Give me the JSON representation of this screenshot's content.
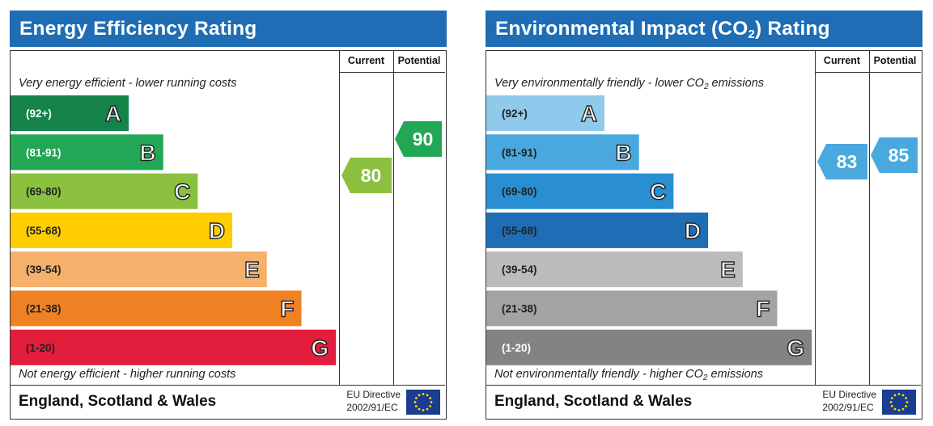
{
  "panels": [
    {
      "id": "energy",
      "title": "Energy Efficiency Rating",
      "col_current": "Current",
      "col_potential": "Potential",
      "top_note": "Very energy efficient - lower running costs",
      "bottom_note": "Not energy efficient - higher running costs",
      "footer_region": "England, Scotland & Wales",
      "eu_line1": "EU Directive",
      "eu_line2": "2002/91/EC",
      "current": 80,
      "potential": 90
    },
    {
      "id": "environment",
      "title_pre": "Environmental Impact (CO",
      "title_sub": "2",
      "title_post": ") Rating",
      "col_current": "Current",
      "col_potential": "Potential",
      "top_note_pre": "Very environmentally friendly - lower CO",
      "top_note_sub": "2",
      "top_note_post": " emissions",
      "bottom_note_pre": "Not environmentally friendly - higher CO",
      "bottom_note_sub": "2",
      "bottom_note_post": " emissions",
      "footer_region": "England, Scotland & Wales",
      "eu_line1": "EU Directive",
      "eu_line2": "2002/91/EC",
      "current": 83,
      "potential": 85
    }
  ],
  "chart_data": [
    {
      "type": "bar",
      "title": "Energy Efficiency Rating",
      "categories": [
        "A",
        "B",
        "C",
        "D",
        "E",
        "F",
        "G"
      ],
      "ranges": [
        "(92+)",
        "(81-91)",
        "(69-80)",
        "(55-68)",
        "(39-54)",
        "(21-38)",
        "(1-20)"
      ],
      "range_min": [
        92,
        81,
        69,
        55,
        39,
        21,
        1
      ],
      "colors": [
        "#15834a",
        "#22a757",
        "#8cc13f",
        "#ffcc00",
        "#f5b06c",
        "#ef8123",
        "#e31d3c"
      ],
      "range_text_colors": [
        "#ffffff",
        "#ffffff",
        "#222222",
        "#222222",
        "#222222",
        "#222222",
        "#222222"
      ],
      "letter_fill_colors": [
        "#ffffff",
        "#ffffff",
        "#ffffff",
        "#ffffff",
        "#ffffff",
        "#ffffff",
        "#ffffff"
      ],
      "current": 80,
      "potential": 90
    },
    {
      "type": "bar",
      "title": "Environmental Impact (CO2) Rating",
      "categories": [
        "A",
        "B",
        "C",
        "D",
        "E",
        "F",
        "G"
      ],
      "ranges": [
        "(92+)",
        "(81-91)",
        "(69-80)",
        "(55-68)",
        "(39-54)",
        "(21-38)",
        "(1-20)"
      ],
      "range_min": [
        92,
        81,
        69,
        55,
        39,
        21,
        1
      ],
      "colors": [
        "#8fc9ec",
        "#49a9df",
        "#2a8ed2",
        "#1f6db4",
        "#bcbcbc",
        "#a3a3a3",
        "#838383"
      ],
      "range_text_colors": [
        "#222222",
        "#222222",
        "#222222",
        "#222222",
        "#222222",
        "#222222",
        "#ffffff"
      ],
      "letter_fill_colors": [
        "#ffffff",
        "#ffffff",
        "#ffffff",
        "#ffffff",
        "#ffffff",
        "#ffffff",
        "#ffffff"
      ],
      "current": 83,
      "potential": 85
    }
  ],
  "icons": {
    "eu_flag": "eu-flag-icon"
  }
}
